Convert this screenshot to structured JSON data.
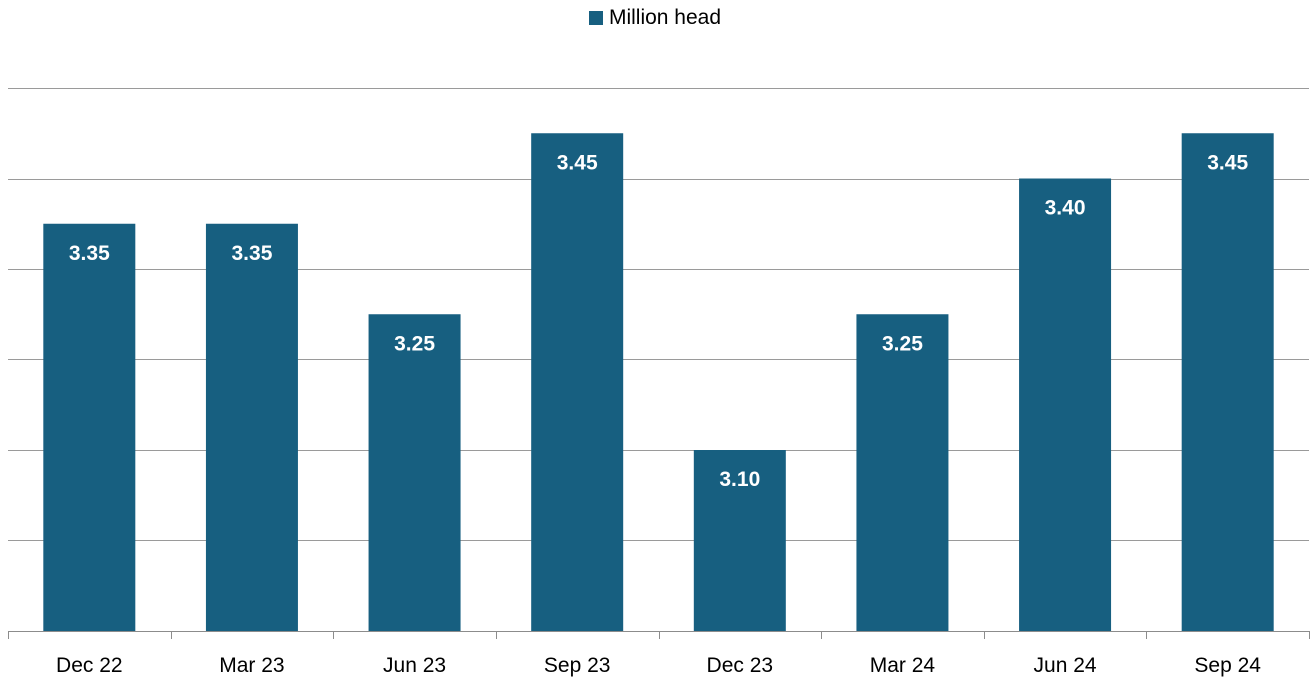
{
  "colors": {
    "bar": "#175F80",
    "grid": "#9A9A9A",
    "axis": "#8C8C8C"
  },
  "chart_data": {
    "type": "bar",
    "categories": [
      "Dec 22",
      "Mar 23",
      "Jun 23",
      "Sep 23",
      "Dec 23",
      "Mar 24",
      "Jun 24",
      "Sep 24"
    ],
    "series": [
      {
        "name": "Million head",
        "values": [
          3.35,
          3.35,
          3.25,
          3.45,
          3.1,
          3.25,
          3.4,
          3.45
        ]
      }
    ],
    "data_labels": [
      "3.35",
      "3.35",
      "3.25",
      "3.45",
      "3.10",
      "3.25",
      "3.40",
      "3.45"
    ],
    "ylim": [
      2.9,
      3.5
    ],
    "grid": true,
    "legend": "top-center",
    "y_tick_labels_shown": false
  }
}
